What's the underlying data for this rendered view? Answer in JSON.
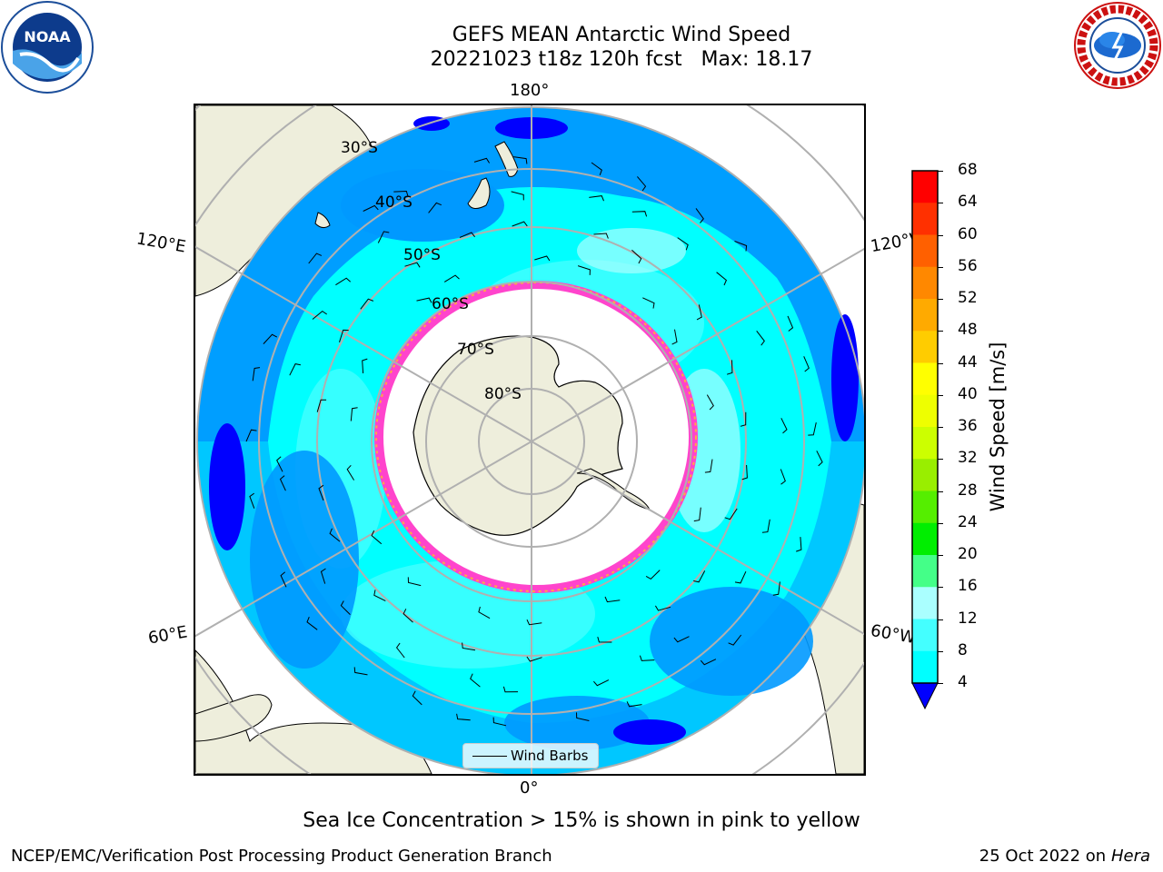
{
  "title": {
    "line1": "GEFS MEAN Antarctic Wind Speed",
    "line2": "20221023 t18z 120h fcst   Max: 18.17"
  },
  "logos": {
    "left": "NOAA",
    "right_ring_text": "NATIONAL WEATHER SERVICE"
  },
  "map": {
    "projection": "south-polar-stereographic",
    "longitude_labels": {
      "top": "180°",
      "bottom": "0°",
      "upper_left": "120°E",
      "upper_right": "120°W",
      "lower_left": "60°E",
      "lower_right": "60°W"
    },
    "latitude_labels": [
      "30°S",
      "40°S",
      "50°S",
      "60°S",
      "70°S",
      "80°S"
    ],
    "colors": {
      "land": "#eeeedc",
      "ice_free_white": "#ffffff",
      "sea_ice_pink": "#ff44cc",
      "sea_ice_orange": "#ffaa44",
      "wind_4_8": "#0099ff",
      "wind_8_12": "#00ffff",
      "wind_12_16": "#44ffff",
      "wind_16_20": "#aaffff",
      "wind_lt_4": "#0000ff",
      "gridline": "#b0b0b0"
    }
  },
  "legend": {
    "label": "Wind Barbs"
  },
  "colorbar": {
    "label": "Wind Speed [m/s]",
    "ticks": [
      "68",
      "64",
      "60",
      "56",
      "52",
      "48",
      "44",
      "40",
      "36",
      "32",
      "28",
      "24",
      "20",
      "16",
      "12",
      "8",
      "4"
    ],
    "colors": [
      "#ff0000",
      "#ff3000",
      "#ff6000",
      "#ff8800",
      "#ffaa00",
      "#ffcc00",
      "#ffff00",
      "#eeff00",
      "#ccff00",
      "#99ee00",
      "#55ee00",
      "#00ee00",
      "#44ff88",
      "#aaffff",
      "#44ffff",
      "#00ffff",
      "#0099ff"
    ],
    "under_color": "#0000ff"
  },
  "caption": "Sea Ice Concentration > 15% is shown in pink to yellow",
  "footer": {
    "left": "NCEP/EMC/Verification Post Processing Product Generation Branch",
    "right_date": "25 Oct 2022 on",
    "right_host": "Hera"
  }
}
